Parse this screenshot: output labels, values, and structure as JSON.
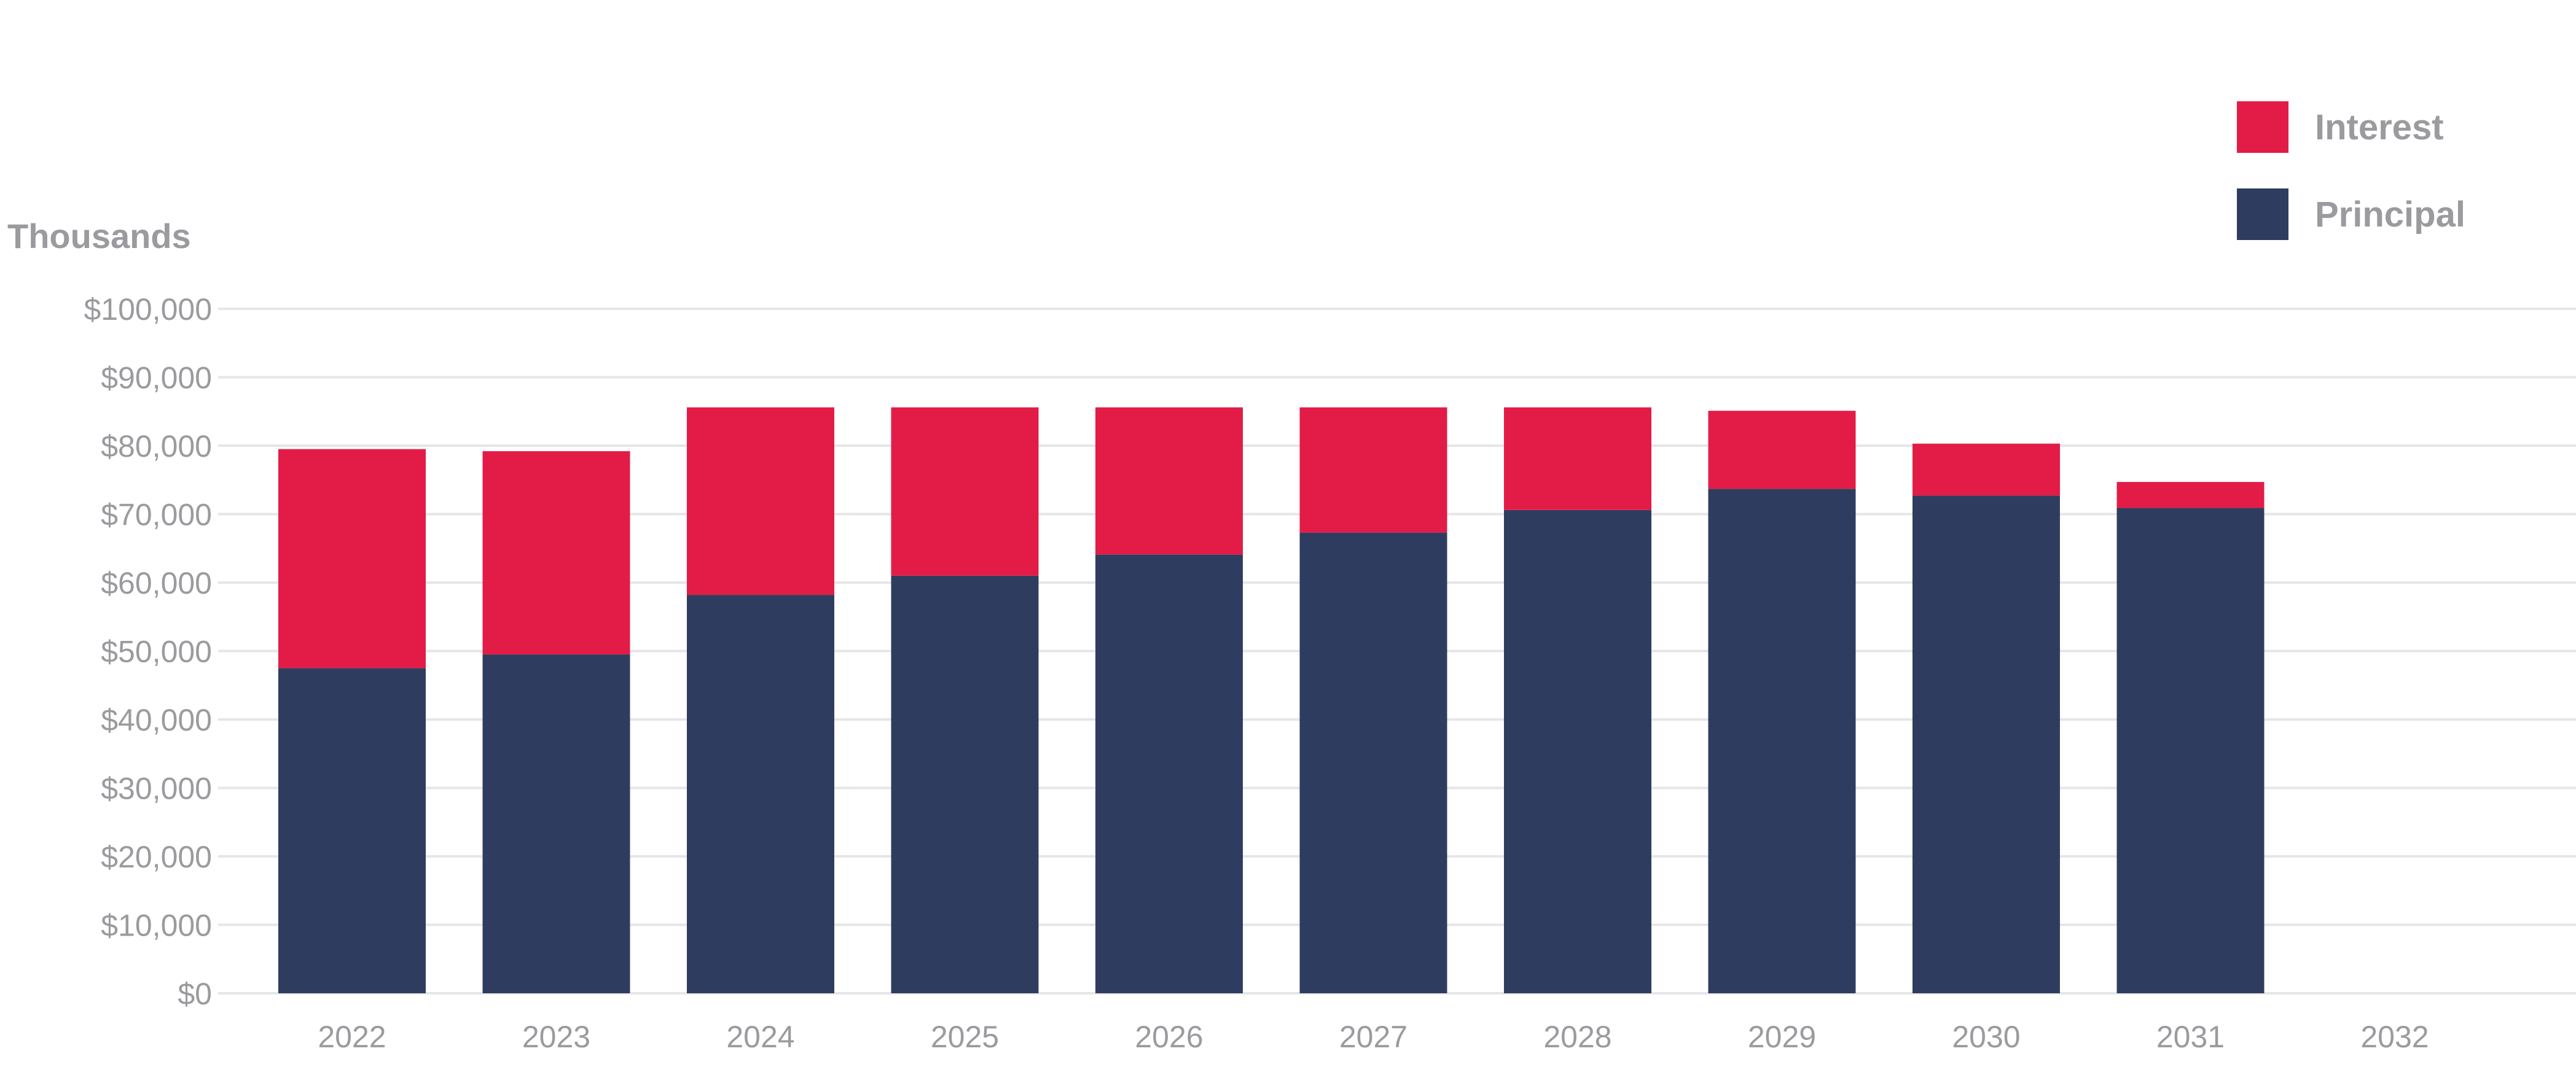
{
  "chart_data": {
    "type": "bar",
    "stacked": true,
    "ylabel": "Thousands",
    "xlabel": "",
    "ylim": [
      0,
      100000
    ],
    "yticks": [
      0,
      10000,
      20000,
      30000,
      40000,
      50000,
      60000,
      70000,
      80000,
      90000,
      100000
    ],
    "ytick_labels": [
      "$0",
      "$10,000",
      "$20,000",
      "$30,000",
      "$40,000",
      "$50,000",
      "$60,000",
      "$70,000",
      "$80,000",
      "$90,000",
      "$100,000"
    ],
    "categories": [
      "2022",
      "2023",
      "2024",
      "2025",
      "2026",
      "2027",
      "2028",
      "2029",
      "2030",
      "2031",
      "2032"
    ],
    "series": [
      {
        "name": "Principal",
        "color": "#2e3d5f",
        "values": [
          47500,
          49500,
          58200,
          61000,
          64100,
          67300,
          70600,
          73700,
          72700,
          70900,
          0
        ]
      },
      {
        "name": "Interest",
        "color": "#e31c47",
        "values": [
          32000,
          29700,
          27400,
          24600,
          21500,
          18300,
          15000,
          11400,
          7600,
          3800,
          0
        ]
      }
    ],
    "legend": {
      "position": "top-right",
      "order": [
        "Interest",
        "Principal"
      ]
    },
    "grid": true
  }
}
